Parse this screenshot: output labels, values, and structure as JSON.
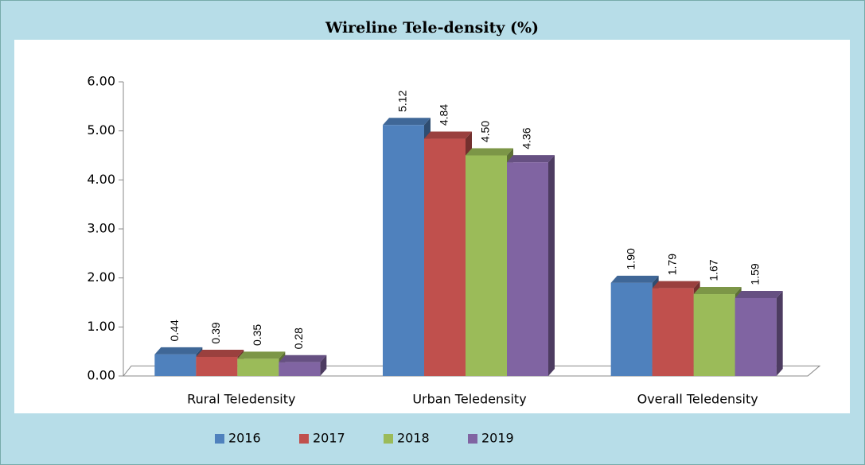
{
  "chart_data": {
    "type": "bar3d",
    "title": "Wireline Tele-density (%)",
    "categories": [
      "Rural Teledensity",
      "Urban Teledensity",
      "Overall Teledensity"
    ],
    "series": [
      {
        "name": "2016",
        "color": "#4f81bd",
        "values": [
          0.44,
          5.12,
          1.9
        ],
        "value_labels": [
          "0.44",
          "5.12",
          "1.90"
        ]
      },
      {
        "name": "2017",
        "color": "#c0504d",
        "values": [
          0.39,
          4.84,
          1.79
        ],
        "value_labels": [
          "0.39",
          "4.84",
          "1.79"
        ]
      },
      {
        "name": "2018",
        "color": "#9bbb59",
        "values": [
          0.35,
          4.5,
          1.67
        ],
        "value_labels": [
          "0.35",
          "4.50",
          "1.67"
        ]
      },
      {
        "name": "2019",
        "color": "#8064a2",
        "values": [
          0.28,
          4.36,
          1.59
        ],
        "value_labels": [
          "0.28",
          "4.36",
          "1.59"
        ]
      }
    ],
    "ylim": [
      0,
      6
    ],
    "yticks": [
      {
        "value": 0,
        "label": "0.00"
      },
      {
        "value": 1,
        "label": "1.00"
      },
      {
        "value": 2,
        "label": "2.00"
      },
      {
        "value": 3,
        "label": "3.00"
      },
      {
        "value": 4,
        "label": "4.00"
      },
      {
        "value": 5,
        "label": "5.00"
      },
      {
        "value": 6,
        "label": "6.00"
      }
    ],
    "legend": "bottom"
  }
}
